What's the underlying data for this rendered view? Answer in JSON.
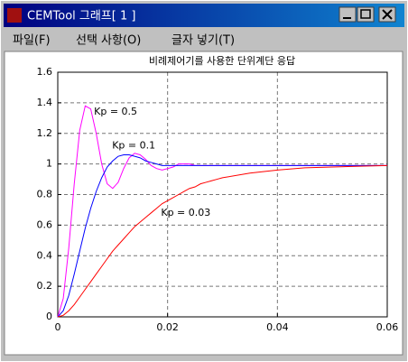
{
  "window": {
    "title": "CEMTool 그래프[ 1 ]",
    "menu": [
      "파일(F)",
      "선택 사항(O)",
      "글자 넣기(T)"
    ]
  },
  "chart_data": {
    "type": "line",
    "title": "비례제어기를 사용한 단위계단 응답",
    "x": [
      0,
      0.001,
      0.002,
      0.003,
      0.004,
      0.005,
      0.006,
      0.007,
      0.008,
      0.009,
      0.01,
      0.011,
      0.012,
      0.013,
      0.014,
      0.015,
      0.016,
      0.017,
      0.018,
      0.019,
      0.02,
      0.021,
      0.022,
      0.023,
      0.024,
      0.025,
      0.026,
      0.027,
      0.028,
      0.029,
      0.03,
      0.035,
      0.04,
      0.045,
      0.05,
      0.055,
      0.06
    ],
    "series": [
      {
        "color": "#ff00ff",
        "values": [
          0,
          0.12,
          0.45,
          0.87,
          1.22,
          1.38,
          1.36,
          1.2,
          1.0,
          0.87,
          0.84,
          0.88,
          0.97,
          1.04,
          1.07,
          1.06,
          1.03,
          0.99,
          0.97,
          0.96,
          0.97,
          0.98,
          1.0,
          1.0,
          1.0,
          0.99,
          0.99,
          0.99,
          0.99,
          0.99,
          0.99,
          0.99,
          0.99,
          0.99,
          0.99,
          0.99,
          0.99
        ]
      },
      {
        "color": "#0000ff",
        "values": [
          0,
          0.04,
          0.14,
          0.28,
          0.43,
          0.58,
          0.71,
          0.82,
          0.91,
          0.98,
          1.02,
          1.05,
          1.06,
          1.06,
          1.05,
          1.04,
          1.02,
          1.01,
          1.0,
          0.99,
          0.99,
          0.99,
          0.99,
          0.99,
          0.99,
          0.99,
          0.99,
          0.99,
          0.99,
          0.99,
          0.99,
          0.99,
          0.99,
          0.99,
          0.99,
          0.99,
          0.99
        ]
      },
      {
        "color": "#ff0000",
        "values": [
          0,
          0.01,
          0.04,
          0.08,
          0.13,
          0.18,
          0.23,
          0.28,
          0.33,
          0.38,
          0.43,
          0.47,
          0.51,
          0.55,
          0.59,
          0.62,
          0.65,
          0.68,
          0.71,
          0.74,
          0.76,
          0.78,
          0.8,
          0.82,
          0.84,
          0.85,
          0.87,
          0.88,
          0.89,
          0.9,
          0.91,
          0.94,
          0.96,
          0.975,
          0.98,
          0.985,
          0.99
        ]
      }
    ],
    "annotations": [
      {
        "text": "Kp = 0.5",
        "x": 0.0066,
        "y": 1.34
      },
      {
        "text": "Kp = 0.1",
        "x": 0.0099,
        "y": 1.12
      },
      {
        "text": "Kp = 0.03",
        "x": 0.0188,
        "y": 0.68
      }
    ],
    "xlim": [
      0,
      0.06
    ],
    "xticks": [
      0,
      0.02,
      0.04,
      0.06
    ],
    "ylim": [
      0,
      1.6
    ],
    "yticks": [
      0,
      0.2,
      0.4,
      0.6,
      0.8,
      1,
      1.2,
      1.4,
      1.6
    ],
    "grid": true
  }
}
